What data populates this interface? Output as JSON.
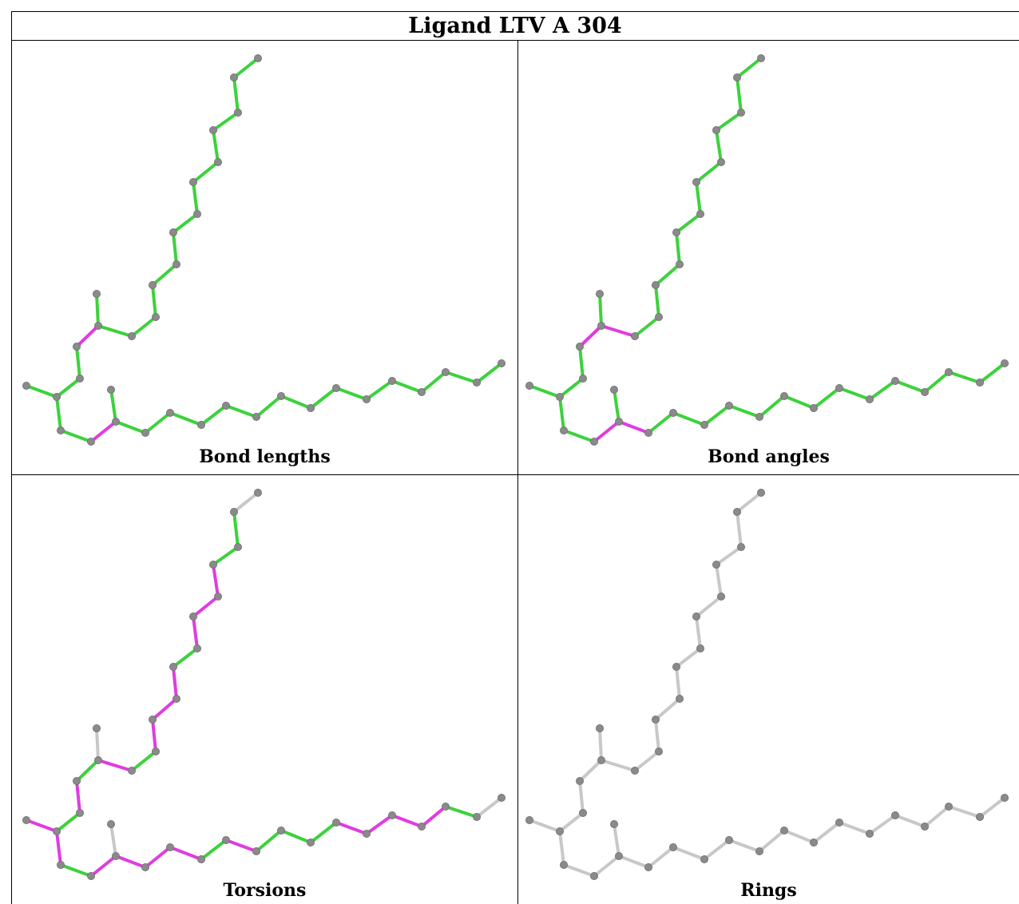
{
  "title": "Ligand LTV A 304",
  "panels": [
    {
      "caption": "Bond lengths",
      "mode": "lengths"
    },
    {
      "caption": "Bond angles",
      "mode": "angles"
    },
    {
      "caption": "Torsions",
      "mode": "torsions"
    },
    {
      "caption": "Rings",
      "mode": "rings"
    }
  ],
  "colors": {
    "ok": "#3cd23c",
    "outlier": "#e03ce0",
    "neutral": "#c8c8c8",
    "atom": "#8a8a8a"
  }
}
